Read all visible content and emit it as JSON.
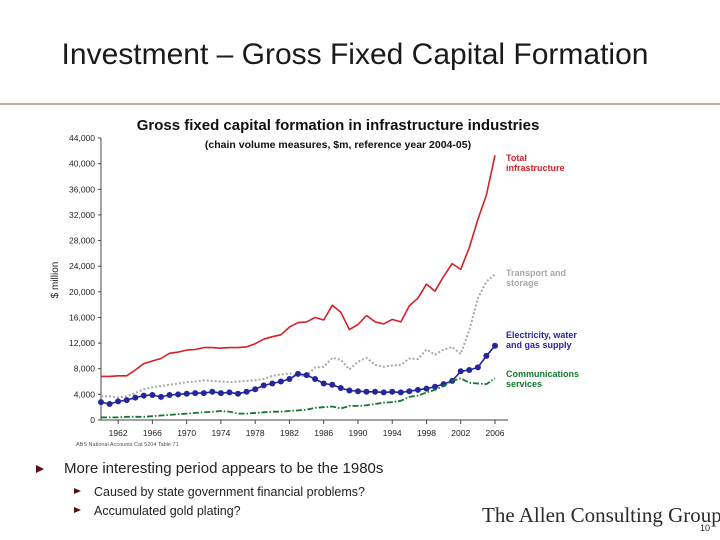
{
  "slide": {
    "title": "Investment – Gross Fixed Capital Formation",
    "bullets": [
      {
        "text": "More interesting period appears to be the 1980s",
        "sub": [
          "Caused by state government financial problems?",
          "Accumulated gold plating?"
        ]
      }
    ],
    "logo": "The Allen Consulting Group",
    "page_number": "10"
  },
  "chart_data": {
    "type": "line",
    "title": "Gross fixed capital formation in infrastructure industries",
    "subtitle": "(chain volume measures, $m, reference year 2004-05)",
    "ylabel": "$ million",
    "xlabel": "",
    "source": "ABS National Accounts Cat 5204 Table 71",
    "ylim": [
      0,
      44000
    ],
    "xlim": [
      1960,
      2006
    ],
    "yticks": [
      0,
      4000,
      8000,
      12000,
      16000,
      20000,
      24000,
      28000,
      32000,
      36000,
      40000,
      44000
    ],
    "ytick_labels": [
      "0",
      "4,000",
      "8,000",
      "12,000",
      "16,000",
      "20,000",
      "24,000",
      "28,000",
      "32,000",
      "36,000",
      "40,000",
      "44,000"
    ],
    "xticks": [
      1962,
      1966,
      1970,
      1974,
      1978,
      1982,
      1986,
      1990,
      1994,
      1998,
      2002,
      2006
    ],
    "grid": false,
    "x": [
      1960,
      1961,
      1962,
      1963,
      1964,
      1965,
      1966,
      1967,
      1968,
      1969,
      1970,
      1971,
      1972,
      1973,
      1974,
      1975,
      1976,
      1977,
      1978,
      1979,
      1980,
      1981,
      1982,
      1983,
      1984,
      1985,
      1986,
      1987,
      1988,
      1989,
      1990,
      1991,
      1992,
      1993,
      1994,
      1995,
      1996,
      1997,
      1998,
      1999,
      2000,
      2001,
      2002,
      2003,
      2004,
      2005,
      2006
    ],
    "series": [
      {
        "name": "Total infrastructure",
        "color": "#d42027",
        "style": "solid",
        "values": [
          6800,
          6800,
          6900,
          6900,
          7800,
          8800,
          9200,
          9600,
          10400,
          10600,
          10900,
          11000,
          11300,
          11300,
          11200,
          11300,
          11300,
          11400,
          11900,
          12600,
          13000,
          13300,
          14500,
          15200,
          15300,
          16000,
          15600,
          17900,
          16800,
          14100,
          14900,
          16300,
          15300,
          15000,
          15700,
          15300,
          17800,
          19000,
          21200,
          20100,
          22400,
          24400,
          23500,
          26900,
          31300,
          35100,
          41300
        ]
      },
      {
        "name": "Transport and storage",
        "color": "#a8a8a8",
        "style": "dotted",
        "values": [
          3700,
          3700,
          3500,
          3700,
          4200,
          4800,
          5100,
          5300,
          5500,
          5700,
          5900,
          6000,
          6200,
          6100,
          6000,
          5900,
          6000,
          6100,
          6200,
          6400,
          6900,
          7100,
          7300,
          6900,
          6900,
          8200,
          8300,
          9700,
          9400,
          7900,
          9100,
          9700,
          8600,
          8300,
          8500,
          8600,
          9600,
          9500,
          11000,
          10200,
          11000,
          11400,
          10300,
          14000,
          19000,
          21600,
          22700
        ]
      },
      {
        "name": "Electricity, water and gas supply",
        "color": "#25269b",
        "style": "solid-markers",
        "values": [
          2800,
          2500,
          2900,
          3100,
          3500,
          3800,
          3900,
          3600,
          3900,
          4000,
          4100,
          4200,
          4200,
          4400,
          4200,
          4300,
          4100,
          4400,
          4800,
          5400,
          5700,
          6000,
          6400,
          7200,
          7000,
          6400,
          5700,
          5500,
          5000,
          4600,
          4500,
          4400,
          4400,
          4300,
          4400,
          4300,
          4500,
          4700,
          4900,
          5200,
          5600,
          6100,
          7600,
          7800,
          8200,
          10000,
          11600
        ]
      },
      {
        "name": "Communications services",
        "color": "#12782e",
        "style": "dash-dot",
        "values": [
          400,
          400,
          400,
          500,
          500,
          500,
          600,
          700,
          800,
          900,
          1000,
          1100,
          1200,
          1300,
          1400,
          1300,
          1000,
          1000,
          1100,
          1200,
          1300,
          1300,
          1400,
          1500,
          1600,
          1900,
          2000,
          2100,
          1800,
          2200,
          2200,
          2300,
          2500,
          2700,
          2800,
          3000,
          3600,
          3800,
          4300,
          4700,
          5300,
          6100,
          6500,
          5800,
          5700,
          5600,
          6500
        ]
      }
    ]
  }
}
